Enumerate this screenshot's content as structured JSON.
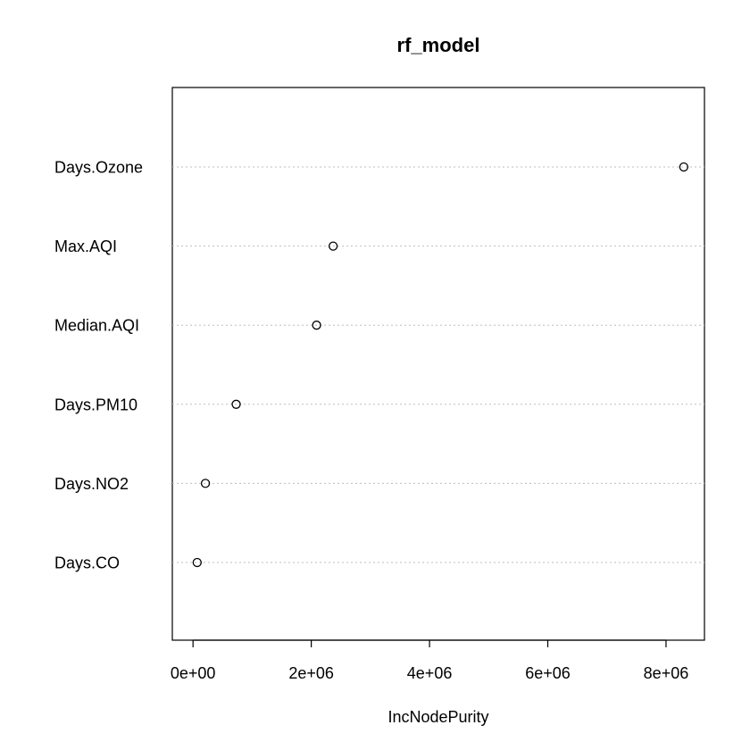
{
  "chart_data": {
    "type": "scatter",
    "title": "rf_model",
    "xlabel": "IncNodePurity",
    "ylabel": "",
    "xlim": [
      -350000,
      8650000
    ],
    "x_ticks": [
      0,
      2000000,
      4000000,
      6000000,
      8000000
    ],
    "x_tick_labels": [
      "0e+00",
      "2e+06",
      "4e+06",
      "6e+06",
      "8e+06"
    ],
    "categories": [
      "Days.Ozone",
      "Max.AQI",
      "Median.AQI",
      "Days.PM10",
      "Days.NO2",
      "Days.CO"
    ],
    "values": [
      8300000,
      2370000,
      2090000,
      730000,
      210000,
      70000
    ],
    "grid": "dotted horizontal guide per variable",
    "legend": "none"
  }
}
